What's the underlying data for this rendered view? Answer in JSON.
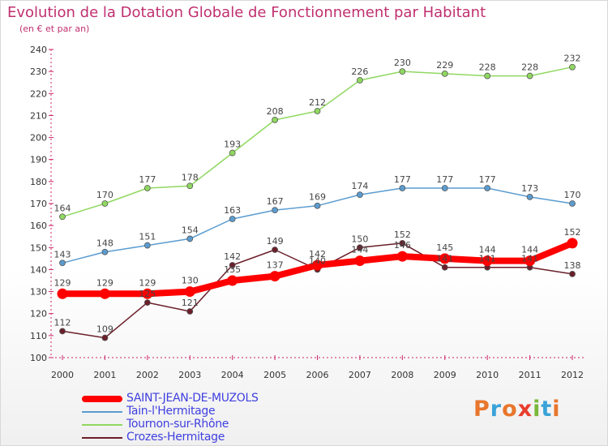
{
  "header": {
    "title": "Evolution de la Dotation Globale de Fonctionnement par Habitant",
    "subtitle": "(en € et par an)"
  },
  "logo": {
    "text": "Proxiti",
    "colors": [
      "#e8762c",
      "#39a3d8",
      "#e8762c",
      "#e83c2c",
      "#7bb83a",
      "#39a3d8",
      "#e8762c"
    ]
  },
  "chart_data": {
    "type": "line",
    "title": "Evolution de la Dotation Globale de Fonctionnement par Habitant",
    "subtitle": "(en € et par an)",
    "x": [
      "2000",
      "2001",
      "2002",
      "2003",
      "2004",
      "2005",
      "2006",
      "2007",
      "2008",
      "2009",
      "2010",
      "2011",
      "2012"
    ],
    "ylim": [
      100,
      240
    ],
    "yticks": [
      100,
      110,
      120,
      130,
      140,
      150,
      160,
      170,
      180,
      190,
      200,
      210,
      220,
      230,
      240
    ],
    "grid": false,
    "legend_position": "bottom-left",
    "series": [
      {
        "name": "Crozes-Hermitage",
        "color": "#6b1f2a",
        "values": [
          112,
          109,
          125,
          121,
          142,
          149,
          140,
          150,
          152,
          141,
          141,
          141,
          138
        ]
      },
      {
        "name": "Tain-l'Hermitage",
        "color": "#5b9cd0",
        "values": [
          143,
          148,
          151,
          154,
          163,
          167,
          169,
          174,
          177,
          177,
          177,
          173,
          170
        ]
      },
      {
        "name": "Tournon-sur-Rhône",
        "color": "#90d860",
        "values": [
          164,
          170,
          177,
          178,
          193,
          208,
          212,
          226,
          230,
          229,
          228,
          228,
          232
        ]
      },
      {
        "name": "SAINT-JEAN-DE-MUZOLS",
        "color": "#ff0000",
        "values": [
          129,
          129,
          129,
          130,
          135,
          137,
          142,
          144,
          146,
          145,
          144,
          144,
          152
        ]
      }
    ]
  },
  "legend": {
    "items": [
      {
        "label": "SAINT-JEAN-DE-MUZOLS",
        "color": "#ff0000",
        "text_color": "#3f3fe0",
        "thickness": 8
      },
      {
        "label": "Tain-l'Hermitage",
        "color": "#5b9cd0",
        "text_color": "#3f3fe0",
        "thickness": 2
      },
      {
        "label": "Tournon-sur-Rhône",
        "color": "#90d860",
        "text_color": "#3f3fe0",
        "thickness": 2
      },
      {
        "label": "Crozes-Hermitage",
        "color": "#6b1f2a",
        "text_color": "#3f3fe0",
        "thickness": 2
      }
    ]
  }
}
